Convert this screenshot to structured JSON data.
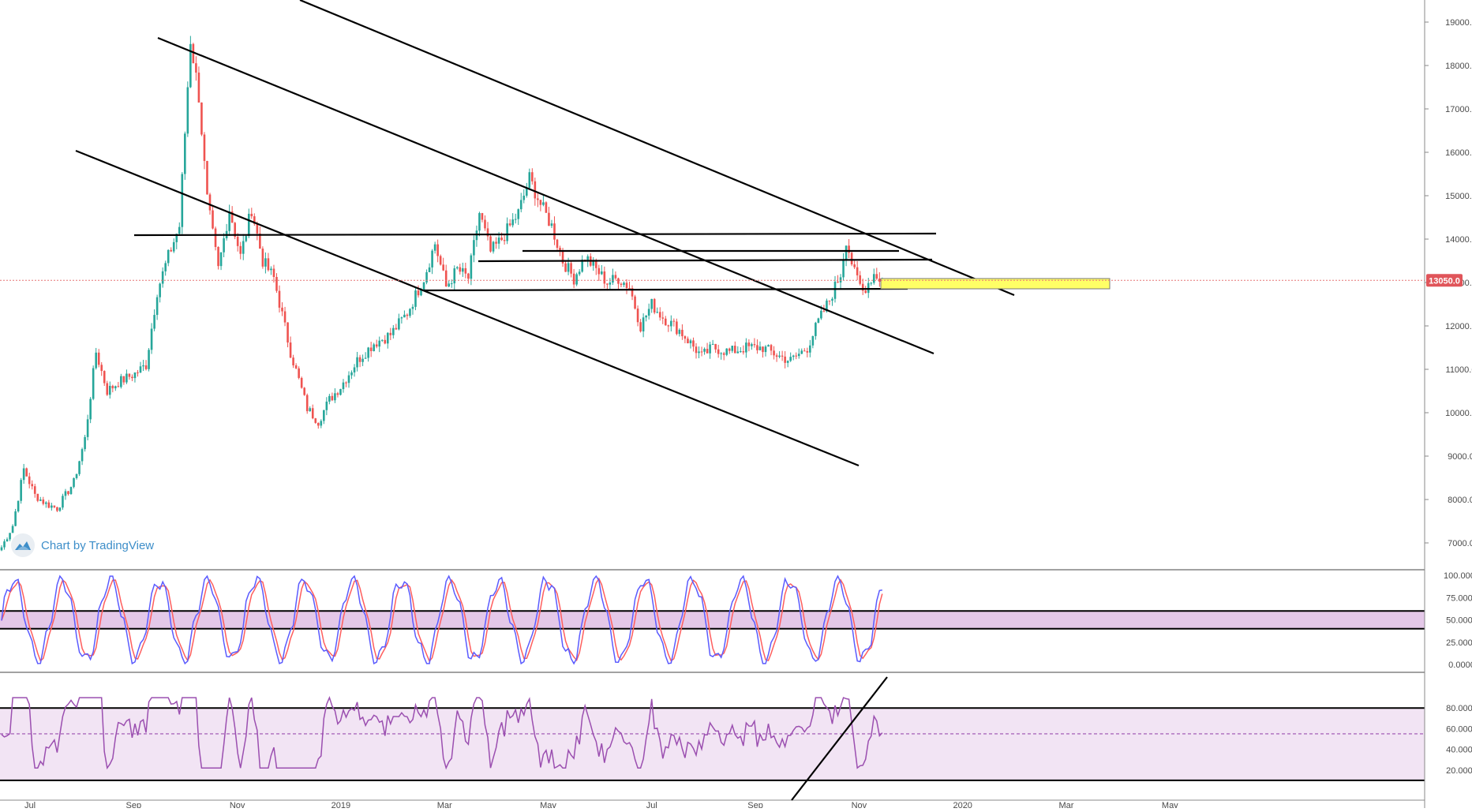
{
  "colors": {
    "up": "#26a69a",
    "down": "#ef5350",
    "trendline": "#000000",
    "price_line": "#e57373",
    "price_badge_bg": "#e0555a",
    "zone": "#ffff66",
    "stoch_k": "#5b5bff",
    "stoch_d": "#ff5e5e",
    "stoch_band": "#e4c8e8",
    "rsi_line": "#9b4fb0",
    "rsi_band": "#f2e4f4",
    "axis_text": "#4a4a4a",
    "watermark": "#3d8ec9"
  },
  "watermark": {
    "text": "Chart by TradingView",
    "icon": "tradingview-logo-icon"
  },
  "price_axis": {
    "ticks": [
      "19000.0",
      "18000.0",
      "17000.0",
      "16000.0",
      "15000.0",
      "14000.0",
      "13000.0",
      "12000.0",
      "11000.0",
      "10000.0",
      "9000.0",
      "8000.0",
      "7000.0"
    ],
    "current_price_label": "13050.0",
    "current_price": 13050
  },
  "stoch_axis": {
    "ticks": [
      "100.0000",
      "75.0000",
      "50.0000",
      "25.0000",
      "0.0000"
    ]
  },
  "rsi_axis": {
    "ticks": [
      "80.0000",
      "60.0000",
      "40.0000",
      "20.0000"
    ]
  },
  "time_axis": {
    "labels": [
      "Jul",
      "Sep",
      "Nov",
      "2019",
      "Mar",
      "May",
      "Jul",
      "Sep",
      "Nov",
      "2020",
      "Mar",
      "May"
    ]
  },
  "chart_data": [
    {
      "type": "candlestick",
      "panel": "price",
      "ylim": [
        6600,
        19400
      ],
      "grid": false,
      "price_path_anchors": [
        [
          0,
          6900
        ],
        [
          4,
          7400
        ],
        [
          8,
          8700
        ],
        [
          12,
          8100
        ],
        [
          16,
          7900
        ],
        [
          20,
          7800
        ],
        [
          26,
          8400
        ],
        [
          30,
          9400
        ],
        [
          34,
          11400
        ],
        [
          38,
          10500
        ],
        [
          42,
          10700
        ],
        [
          48,
          10900
        ],
        [
          52,
          11100
        ],
        [
          56,
          12800
        ],
        [
          60,
          13600
        ],
        [
          64,
          14300
        ],
        [
          68,
          18600
        ],
        [
          71,
          17300
        ],
        [
          74,
          14900
        ],
        [
          78,
          13300
        ],
        [
          82,
          14700
        ],
        [
          86,
          13600
        ],
        [
          90,
          14700
        ],
        [
          94,
          13500
        ],
        [
          98,
          13100
        ],
        [
          104,
          11400
        ],
        [
          110,
          10100
        ],
        [
          114,
          9800
        ],
        [
          118,
          10300
        ],
        [
          122,
          10600
        ],
        [
          128,
          11200
        ],
        [
          134,
          11600
        ],
        [
          140,
          11800
        ],
        [
          146,
          12300
        ],
        [
          152,
          13100
        ],
        [
          156,
          13900
        ],
        [
          160,
          12900
        ],
        [
          164,
          13300
        ],
        [
          168,
          13100
        ],
        [
          172,
          14600
        ],
        [
          176,
          13700
        ],
        [
          180,
          14000
        ],
        [
          186,
          14600
        ],
        [
          190,
          15400
        ],
        [
          194,
          14800
        ],
        [
          198,
          14300
        ],
        [
          202,
          13500
        ],
        [
          206,
          13100
        ],
        [
          210,
          13600
        ],
        [
          214,
          13300
        ],
        [
          218,
          13000
        ],
        [
          222,
          13100
        ],
        [
          226,
          12900
        ],
        [
          230,
          12000
        ],
        [
          234,
          12500
        ],
        [
          238,
          12200
        ],
        [
          244,
          11900
        ],
        [
          248,
          11600
        ],
        [
          252,
          11300
        ],
        [
          256,
          11500
        ],
        [
          262,
          11400
        ],
        [
          268,
          11500
        ],
        [
          274,
          11500
        ],
        [
          280,
          11300
        ],
        [
          284,
          11200
        ],
        [
          290,
          11500
        ],
        [
          294,
          12100
        ],
        [
          298,
          12600
        ],
        [
          302,
          13200
        ],
        [
          304,
          14000
        ],
        [
          307,
          13200
        ],
        [
          310,
          12800
        ],
        [
          314,
          13200
        ],
        [
          317,
          13050
        ]
      ]
    },
    {
      "type": "line",
      "panel": "stochastic",
      "ylim": [
        0,
        100
      ],
      "band": [
        40,
        60
      ],
      "series": [
        {
          "key": "k"
        },
        {
          "key": "d"
        }
      ]
    },
    {
      "type": "line",
      "panel": "rsi",
      "ylim": [
        0,
        100
      ],
      "band": [
        10,
        80
      ],
      "midline": 55,
      "series": [
        {
          "key": "rsi"
        }
      ]
    }
  ]
}
